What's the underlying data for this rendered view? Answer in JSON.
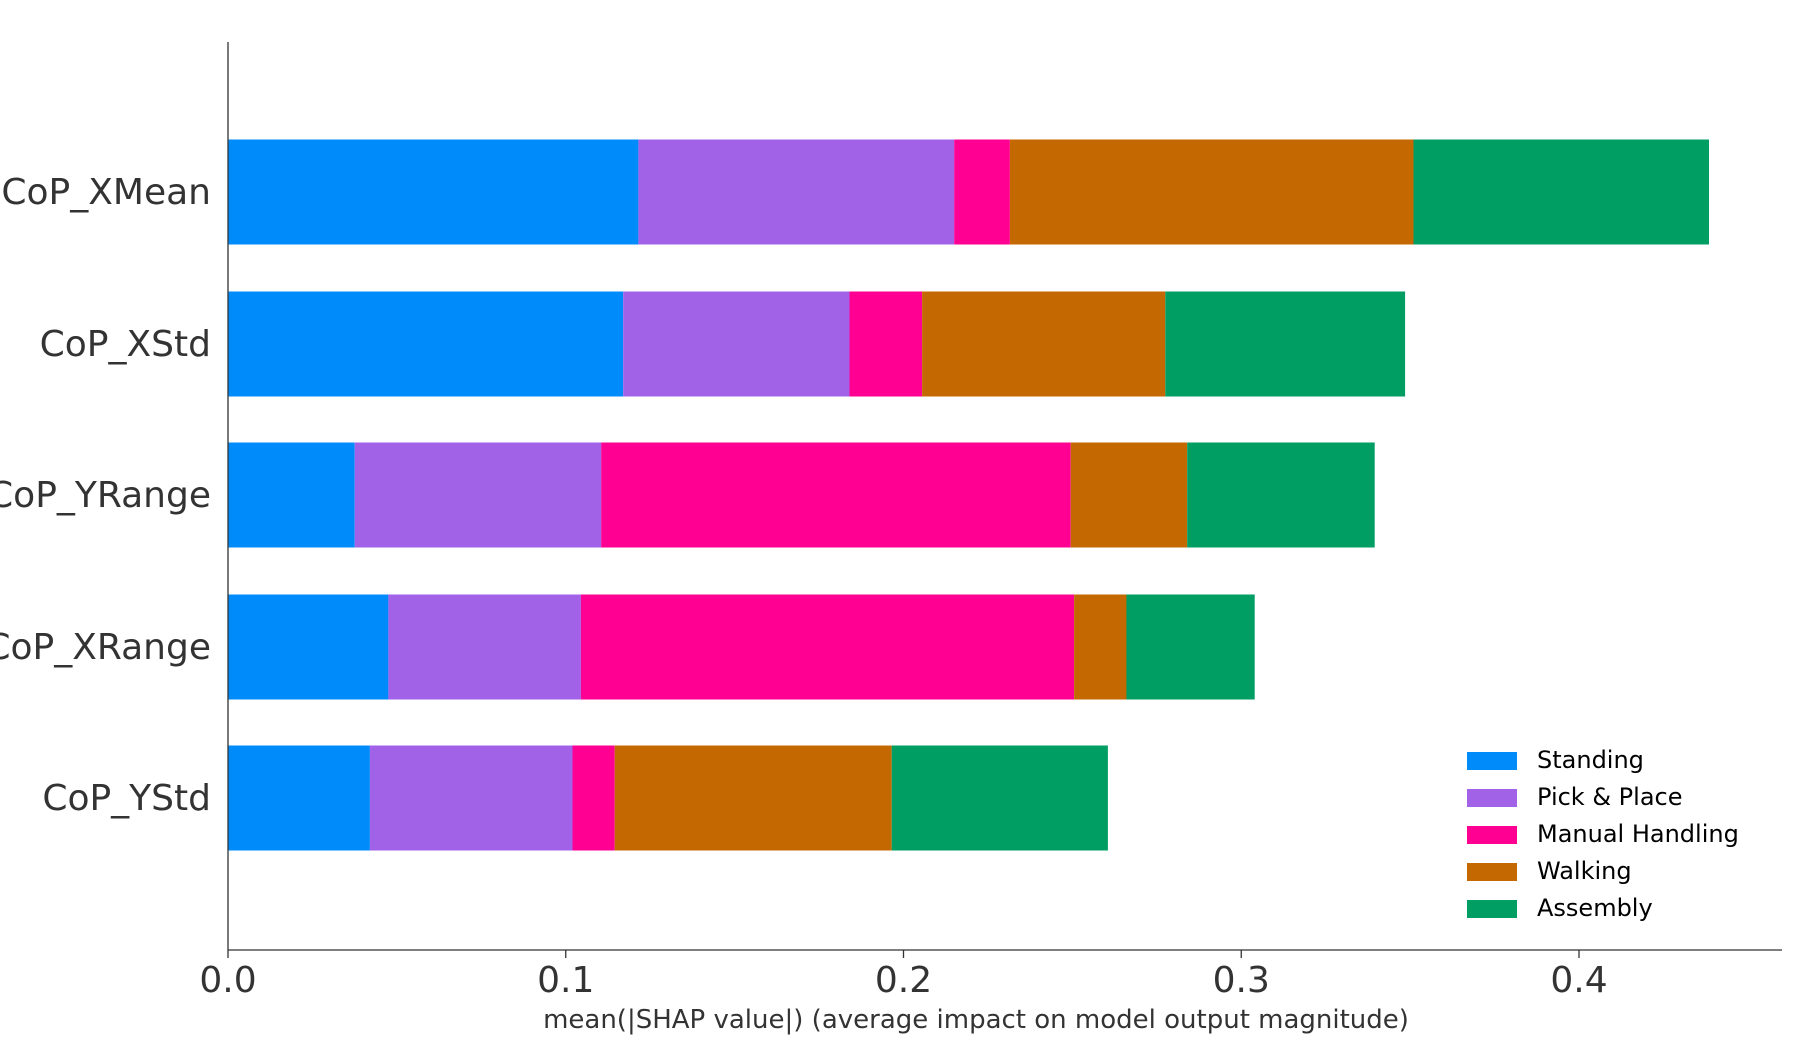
{
  "chart_data": {
    "type": "bar",
    "orientation": "horizontal",
    "stacked": true,
    "categories": [
      "CoP_XMean",
      "CoP_XStd",
      "CoP_YRange",
      "CoP_XRange",
      "CoP_YStd"
    ],
    "series": [
      {
        "name": "Standing",
        "color": "#008bfb",
        "values": [
          0.1215,
          0.117,
          0.0375,
          0.0475,
          0.042
        ]
      },
      {
        "name": "Pick & Place",
        "color": "#a262e8",
        "values": [
          0.0935,
          0.067,
          0.073,
          0.057,
          0.06
        ]
      },
      {
        "name": "Manual Handling",
        "color": "#ff0093",
        "values": [
          0.0165,
          0.0215,
          0.139,
          0.146,
          0.0125
        ]
      },
      {
        "name": "Walking",
        "color": "#c46801",
        "values": [
          0.1195,
          0.072,
          0.0345,
          0.0155,
          0.082
        ]
      },
      {
        "name": "Assembly",
        "color": "#009e63",
        "values": [
          0.0875,
          0.071,
          0.0555,
          0.038,
          0.064
        ]
      }
    ],
    "xlabel": "mean(|SHAP value|) (average impact on model output magnitude)",
    "ylabel": "",
    "xlim": [
      0,
      0.46
    ],
    "xticks": [
      0.0,
      0.1,
      0.2,
      0.3,
      0.4
    ],
    "xtick_labels": [
      "0.0",
      "0.1",
      "0.2",
      "0.3",
      "0.4"
    ],
    "legend": {
      "position": "lower-right"
    },
    "grid": false
  }
}
